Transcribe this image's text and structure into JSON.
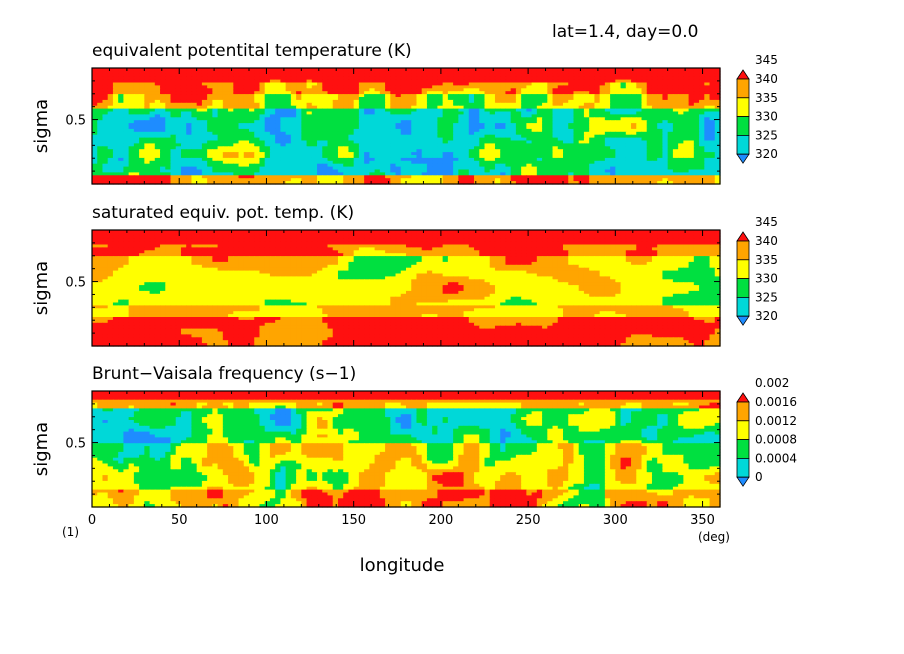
{
  "header": "lat=1.4, day=0.0",
  "chart_data": [
    {
      "type": "heatmap",
      "title": "equivalent potentital temperature (K)",
      "ylabel": "sigma",
      "yticks": [
        "0.5"
      ],
      "x_range": [
        0,
        360
      ],
      "y_range": [
        0,
        0.9
      ],
      "colorbar": {
        "levels": [
          "320",
          "325",
          "330",
          "335",
          "340",
          "345"
        ],
        "colors": [
          "#1e8cff",
          "#00d8d8",
          "#00e040",
          "#ffff00",
          "#ffa500",
          "#ff1010"
        ]
      }
    },
    {
      "type": "heatmap",
      "title": "saturated equiv. pot. temp. (K)",
      "ylabel": "sigma",
      "yticks": [
        "0.5"
      ],
      "x_range": [
        0,
        360
      ],
      "y_range": [
        0,
        0.9
      ],
      "colorbar": {
        "levels": [
          "320",
          "325",
          "330",
          "335",
          "340",
          "345"
        ],
        "colors": [
          "#1e8cff",
          "#00d8d8",
          "#00e040",
          "#ffff00",
          "#ffa500",
          "#ff1010"
        ]
      }
    },
    {
      "type": "heatmap",
      "title": "Brunt−Vaisala frequency (s−1)",
      "ylabel": "sigma",
      "yticks": [
        "0.5"
      ],
      "xlabel": "longitude",
      "xticks": [
        "0",
        "50",
        "100",
        "150",
        "200",
        "250",
        "300",
        "350"
      ],
      "x_range": [
        0,
        360
      ],
      "y_range": [
        0,
        0.9
      ],
      "x_unit": "(deg)",
      "corner_label": "(1)",
      "colorbar": {
        "levels": [
          "0",
          "0.0004",
          "0.0008",
          "0.0012",
          "0.0016",
          "0.002"
        ],
        "colors": [
          "#1e8cff",
          "#00d8d8",
          "#00e040",
          "#ffff00",
          "#ffa500",
          "#ff1010"
        ]
      }
    }
  ]
}
